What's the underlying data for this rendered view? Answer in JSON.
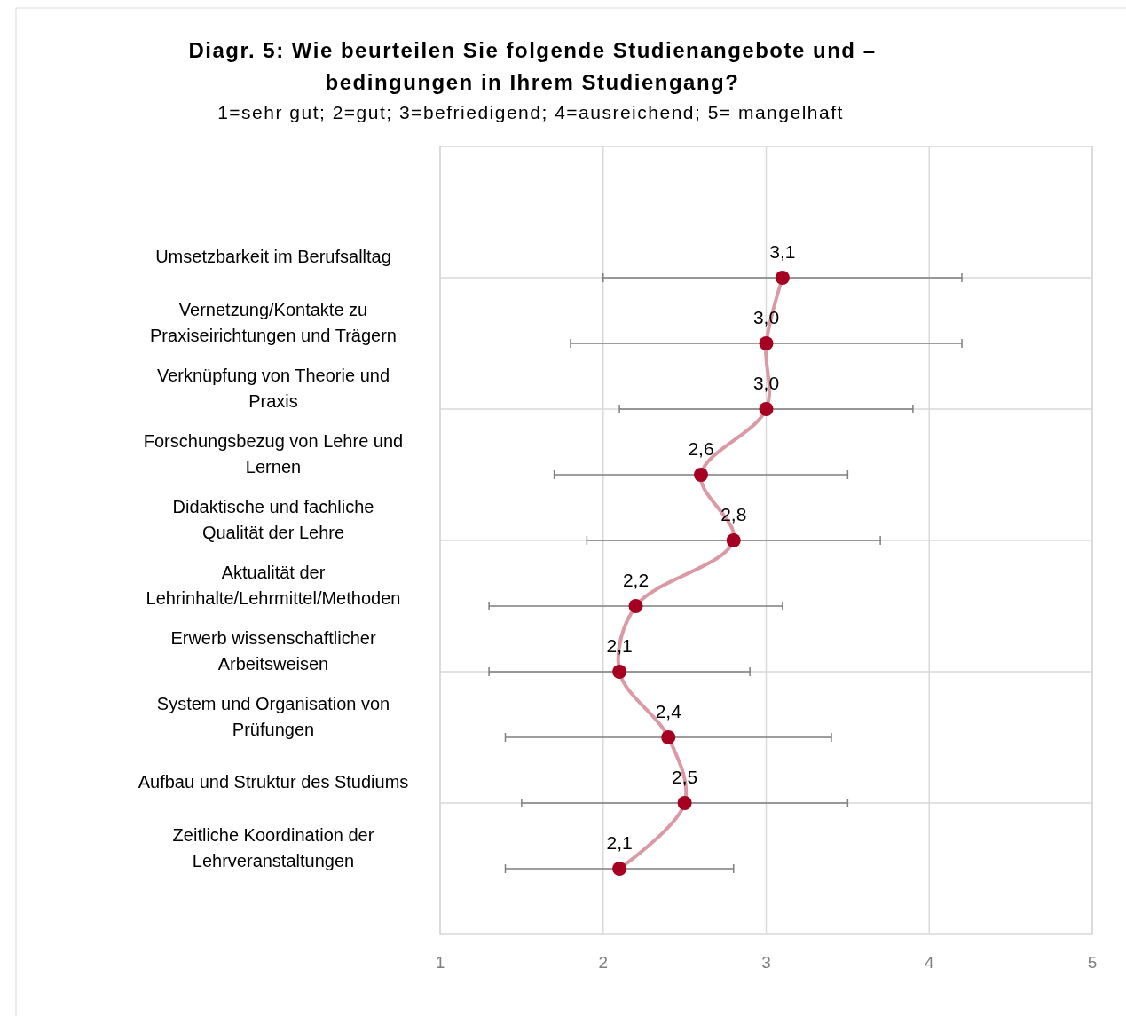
{
  "chart_data": {
    "type": "line",
    "orientation": "horizontal",
    "title": "Diagr. 5: Wie beurteilen Sie folgende Studienangebote und – bedingungen in Ihrem Studiengang?",
    "subtitle": "1=sehr gut; 2=gut; 3=befriedigend; 4=ausreichend; 5= mangelhaft",
    "categories": [
      "Umsetzbarkeit im Berufsalltag",
      "Vernetzung/Kontakte zu Praxiseirichtungen und Trägern",
      "Verknüpfung von Theorie und Praxis",
      "Forschungsbezug von Lehre und Lernen",
      "Didaktische und fachliche Qualität der Lehre",
      "Aktualität der Lehrinhalte/Lehrmittel/Methoden",
      "Erwerb wissenschaftlicher Arbeitsweisen",
      "System und Organisation von Prüfungen",
      "Aufbau und Struktur des Studiums",
      "Zeitliche Koordination der Lehrveranstaltungen"
    ],
    "series": [
      {
        "color": "#a50021",
        "values": [
          3.1,
          3.0,
          3.0,
          2.6,
          2.8,
          2.2,
          2.1,
          2.4,
          2.5,
          2.1
        ],
        "value_labels": [
          "3,1",
          "3,0",
          "3,0",
          "2,6",
          "2,8",
          "2,2",
          "2,1",
          "2,4",
          "2,5",
          "2,1"
        ],
        "errors": [
          [
            2.0,
            4.2
          ],
          [
            1.8,
            4.2
          ],
          [
            2.1,
            3.9
          ],
          [
            1.7,
            3.5
          ],
          [
            1.9,
            3.7
          ],
          [
            1.3,
            3.1
          ],
          [
            1.3,
            2.9
          ],
          [
            1.4,
            3.4
          ],
          [
            1.5,
            3.5
          ],
          [
            1.4,
            2.8
          ]
        ]
      }
    ],
    "xlim": [
      1,
      5
    ],
    "xticks": [
      1,
      2,
      3,
      4,
      5
    ],
    "grid": true,
    "marker": "circle",
    "line_style": "solid"
  }
}
